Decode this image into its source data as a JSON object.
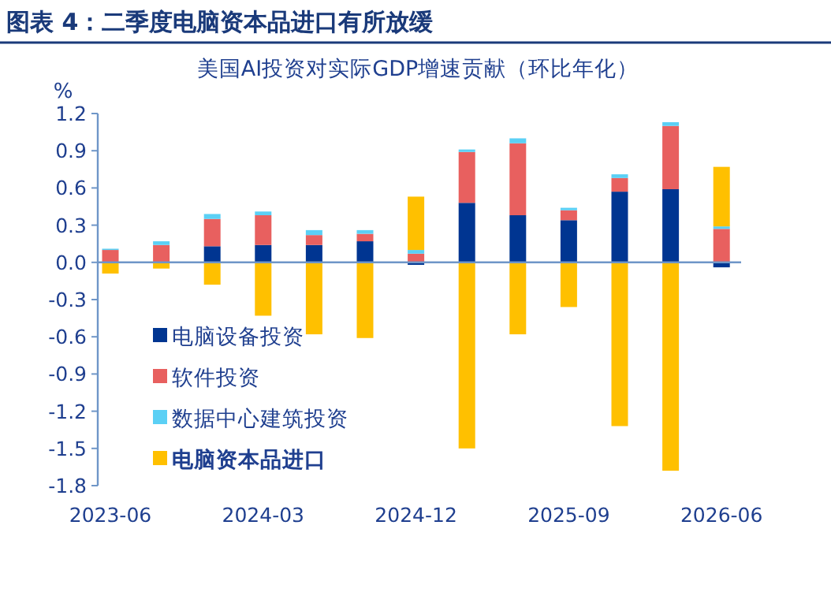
{
  "chart_data": {
    "type": "bar",
    "stacked": true,
    "title": "图表 4：二季度电脑资本品进口有所放缓",
    "subtitle": "美国AI投资对实际GDP增速贡献（环比年化）",
    "ylabel": "%",
    "categories": [
      "2023-06",
      null,
      null,
      "2024-03",
      null,
      null,
      "2024-12",
      null,
      null,
      "2025-09",
      null,
      null,
      "2026-06"
    ],
    "ylim": [
      -1.8,
      1.2
    ],
    "yticks": [
      {
        "value": -1.8,
        "label": "-1.8"
      },
      {
        "value": -1.5,
        "label": "-1.5"
      },
      {
        "value": -1.2,
        "label": "-1.2"
      },
      {
        "value": -0.9,
        "label": "-0.9"
      },
      {
        "value": -0.6,
        "label": "-0.6"
      },
      {
        "value": -0.3,
        "label": "-0.3"
      },
      {
        "value": 0,
        "label": "0.0"
      },
      {
        "value": 0.3,
        "label": "0.3"
      },
      {
        "value": 0.6,
        "label": "0.6"
      },
      {
        "value": 0.9,
        "label": "0.9"
      },
      {
        "value": 1.2,
        "label": "1.2"
      }
    ],
    "legend": "bottom left",
    "grid": false,
    "ref_lines": [
      {
        "axis": "y",
        "value": 0,
        "color": "#6f96c8"
      }
    ],
    "series": [
      {
        "name": "电脑设备投资",
        "color": "#003591",
        "values": [
          0,
          null,
          0.13,
          0.14,
          0.14,
          0.17,
          -0.02,
          0.48,
          0.38,
          0.34,
          0.57,
          0.59,
          -0.04
        ]
      },
      {
        "name": "软件投资",
        "color": "#e8605f",
        "values": [
          0.1,
          0.14,
          0.22,
          0.24,
          0.08,
          0.06,
          0.07,
          0.41,
          0.58,
          0.08,
          0.11,
          0.51,
          0.27
        ]
      },
      {
        "name": "数据中心建筑投资",
        "color": "#5bd0f5",
        "values": [
          0.01,
          0.03,
          0.04,
          0.03,
          0.04,
          0.03,
          0.03,
          0.02,
          0.04,
          0.02,
          0.03,
          0.03,
          0.02
        ]
      },
      {
        "name": "电脑资本品进口",
        "color": "#ffc000",
        "values": [
          -0.09,
          -0.05,
          -0.18,
          -0.43,
          -0.58,
          -0.61,
          0.43,
          -1.5,
          -0.58,
          -0.36,
          -1.32,
          -1.68,
          0.48
        ]
      }
    ]
  }
}
